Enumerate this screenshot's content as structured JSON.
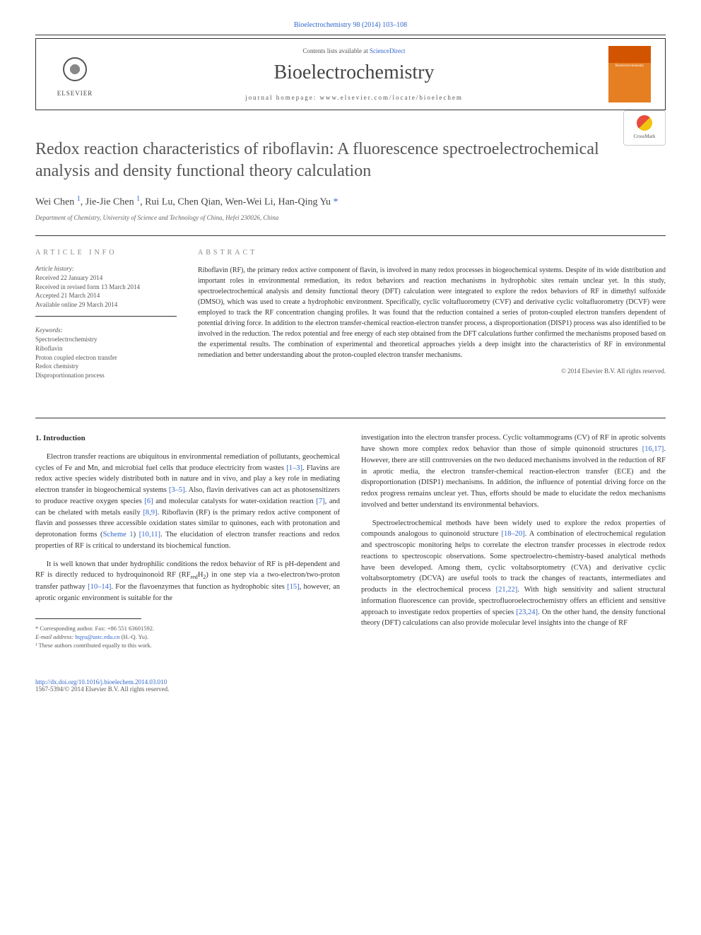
{
  "header": {
    "citation": "Bioelectrochemistry 98 (2014) 103–108",
    "contents_prefix": "Contents lists available at ",
    "contents_link": "ScienceDirect",
    "journal_name": "Bioelectrochemistry",
    "homepage_prefix": "journal homepage: ",
    "homepage_url": "www.elsevier.com/locate/bioelechem",
    "publisher": "ELSEVIER",
    "cover_label": "Bioelectrochemistry"
  },
  "crossmark": "CrossMark",
  "title": "Redox reaction characteristics of riboflavin: A fluorescence spectroelectrochemical analysis and density functional theory calculation",
  "authors": {
    "a1": "Wei Chen",
    "sup1": "1",
    "a2": "Jie-Jie Chen",
    "sup2": "1",
    "a3": "Rui Lu, Chen Qian, Wen-Wei Li, Han-Qing Yu",
    "star": "*"
  },
  "affiliation": "Department of Chemistry, University of Science and Technology of China, Hefei 230026, China",
  "info": {
    "header": "article info",
    "history_head": "Article history:",
    "h1": "Received 22 January 2014",
    "h2": "Received in revised form 13 March 2014",
    "h3": "Accepted 21 March 2014",
    "h4": "Available online 29 March 2014",
    "keywords_head": "Keywords:",
    "k1": "Spectroelectrochemistry",
    "k2": "Riboflavin",
    "k3": "Proton coupled electron transfer",
    "k4": "Redox chemistry",
    "k5": "Disproportionation process"
  },
  "abstract": {
    "header": "abstract",
    "text": "Riboflavin (RF), the primary redox active component of flavin, is involved in many redox processes in biogeochemical systems. Despite of its wide distribution and important roles in environmental remediation, its redox behaviors and reaction mechanisms in hydrophobic sites remain unclear yet. In this study, spectroelectrochemical analysis and density functional theory (DFT) calculation were integrated to explore the redox behaviors of RF in dimethyl sulfoxide (DMSO), which was used to create a hydrophobic environment. Specifically, cyclic voltafluorometry (CVF) and derivative cyclic voltafluorometry (DCVF) were employed to track the RF concentration changing profiles. It was found that the reduction contained a series of proton-coupled electron transfers dependent of potential driving force. In addition to the electron transfer-chemical reaction-electron transfer process, a disproportionation (DISP1) process was also identified to be involved in the reduction. The redox potential and free energy of each step obtained from the DFT calculations further confirmed the mechanisms proposed based on the experimental results. The combination of experimental and theoretical approaches yields a deep insight into the characteristics of RF in environmental remediation and better understanding about the proton-coupled electron transfer mechanisms.",
    "copyright": "© 2014 Elsevier B.V. All rights reserved."
  },
  "body": {
    "section1_title": "1. Introduction",
    "p1a": "Electron transfer reactions are ubiquitous in environmental remediation of pollutants, geochemical cycles of Fe and Mn, and microbial fuel cells that produce electricity from wastes ",
    "p1r1": "[1–3]",
    "p1b": ". Flavins are redox active species widely distributed both in nature and in vivo, and play a key role in mediating electron transfer in biogeochemical systems ",
    "p1r2": "[3–5]",
    "p1c": ". Also, flavin derivatives can act as photosensitizers to produce reactive oxygen species ",
    "p1r3": "[6]",
    "p1d": " and molecular catalysts for water-oxidation reaction ",
    "p1r4": "[7]",
    "p1e": ", and can be chelated with metals easily ",
    "p1r5": "[8,9]",
    "p1f": ". Riboflavin (RF) is the primary redox active component of flavin and possesses three accessible oxidation states similar to quinones, each with protonation and deprotonation forms (",
    "p1r6": "Scheme 1",
    "p1g": ") ",
    "p1r7": "[10,11]",
    "p1h": ". The elucidation of electron transfer reactions and redox properties of RF is critical to understand its biochemical function.",
    "p2a": "It is well known that under hydrophilic conditions the redox behavior of RF is pH-dependent and RF is directly reduced to hydroquinonoid RF (RF",
    "p2sub1": "red",
    "p2b": "H",
    "p2sub2": "2",
    "p2c": ") in one step via a two-electron/two-proton transfer pathway ",
    "p2r1": "[10–14]",
    "p2d": ". For the flavoenzymes that function as hydrophobic sites ",
    "p2r2": "[15]",
    "p2e": ", however, an aprotic organic environment is suitable for the",
    "p3a": "investigation into the electron transfer process. Cyclic voltammograms (CV) of RF in aprotic solvents have shown more complex redox behavior than those of simple quinonoid structures ",
    "p3r1": "[16,17]",
    "p3b": ". However, there are still controversies on the two deduced mechanisms involved in the reduction of RF in aprotic media, the electron transfer-chemical reaction-electron transfer (ECE) and the disproportionation (DISP1) mechanisms. In addition, the influence of potential driving force on the redox progress remains unclear yet. Thus, efforts should be made to elucidate the redox mechanisms involved and better understand its environmental behaviors.",
    "p4a": "Spectroelectrochemical methods have been widely used to explore the redox properties of compounds analogous to quinonoid structure ",
    "p4r1": "[18–20]",
    "p4b": ". A combination of electrochemical regulation and spectroscopic monitoring helps to correlate the electron transfer processes in electrode redox reactions to spectroscopic observations. Some spectroelectro-chemistry-based analytical methods have been developed. Among them, cyclic voltabsorptometry (CVA) and derivative cyclic voltabsorptometry (DCVA) are useful tools to track the changes of reactants, intermediates and products in the electrochemical process ",
    "p4r2": "[21,22]",
    "p4c": ". With high sensitivity and salient structural information fluorescence can provide, spectrofluoroelectrochemistry offers an efficient and sensitive approach to investigate redox properties of species ",
    "p4r3": "[23,24]",
    "p4d": ". On the other hand, the density functional theory (DFT) calculations can also provide molecular level insights into the change of RF"
  },
  "footnotes": {
    "corr": "* Corresponding author. Fax: +86 551 63601592.",
    "email_label": "E-mail address: ",
    "email": "hqyu@ustc.edu.cn",
    "email_suffix": " (H.-Q. Yu).",
    "contrib": "¹ These authors contributed equally to this work."
  },
  "doi": {
    "url": "http://dx.doi.org/10.1016/j.bioelechem.2014.03.010",
    "issn_copyright": "1567-5394/© 2014 Elsevier B.V. All rights reserved."
  }
}
